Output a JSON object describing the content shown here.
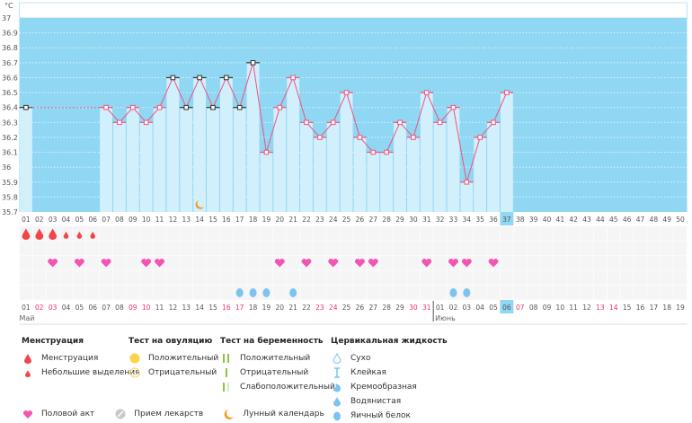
{
  "chart_data": {
    "type": "line",
    "title": "",
    "ylabel": "°C",
    "ylim": [
      35.7,
      37.0
    ],
    "yticks": [
      "37",
      "36.9",
      "36.8",
      "36.7",
      "36.6",
      "36.5",
      "36.4",
      "36.3",
      "36.2",
      "36.1",
      "36",
      "35.9",
      "35.8",
      "35.7"
    ],
    "cycle_days": [
      "01",
      "02",
      "03",
      "04",
      "05",
      "06",
      "07",
      "08",
      "09",
      "10",
      "11",
      "12",
      "13",
      "14",
      "15",
      "16",
      "17",
      "18",
      "19",
      "20",
      "21",
      "22",
      "23",
      "24",
      "25",
      "26",
      "27",
      "28",
      "29",
      "30",
      "31",
      "32",
      "33",
      "34",
      "35",
      "36",
      "37",
      "38",
      "39",
      "40",
      "41",
      "42",
      "43",
      "44",
      "45",
      "46",
      "47",
      "48",
      "49",
      "50"
    ],
    "temperatures": [
      36.4,
      null,
      null,
      null,
      null,
      null,
      36.4,
      36.3,
      36.4,
      36.3,
      36.4,
      36.6,
      36.4,
      36.6,
      36.4,
      36.6,
      36.4,
      36.7,
      36.1,
      36.4,
      36.6,
      36.3,
      36.2,
      36.3,
      36.5,
      36.2,
      36.1,
      36.1,
      36.3,
      36.2,
      36.5,
      36.3,
      36.4,
      35.9,
      36.2,
      36.3,
      36.5
    ],
    "excluded_points_days": [
      1,
      12,
      13,
      14,
      15,
      16,
      17,
      18
    ],
    "current_day": 37,
    "dates": [
      "01",
      "02",
      "03",
      "04",
      "05",
      "06",
      "07",
      "08",
      "09",
      "10",
      "11",
      "12",
      "13",
      "14",
      "15",
      "16",
      "17",
      "18",
      "19",
      "20",
      "21",
      "22",
      "23",
      "24",
      "25",
      "26",
      "27",
      "28",
      "29",
      "30",
      "31",
      "01",
      "02",
      "03",
      "04",
      "05",
      "06",
      "07",
      "08",
      "09",
      "10",
      "11",
      "12",
      "13",
      "14",
      "15",
      "16",
      "17",
      "18",
      "19"
    ],
    "weekend_date_indices": [
      2,
      3,
      9,
      10,
      16,
      17,
      23,
      24,
      30,
      31,
      38,
      44,
      45
    ],
    "months": [
      {
        "label": "Май",
        "start_day": 1
      },
      {
        "label": "Июнь",
        "start_day": 32
      }
    ],
    "menstruation_heavy_days": [
      1,
      2,
      3
    ],
    "menstruation_light_days": [
      4,
      5,
      6
    ],
    "intercourse_days": [
      3,
      5,
      7,
      10,
      11,
      20,
      22,
      24,
      26,
      27,
      31,
      33,
      34,
      36
    ],
    "egg_white_days": [
      17,
      18,
      19,
      21,
      33,
      34
    ],
    "moon_days": [
      14
    ]
  },
  "colors": {
    "bg": "#8fd7f3",
    "bar": "#d2effc",
    "line": "#f0537e",
    "weekend": "#f0306a",
    "menstruation": "#f2454a",
    "heart": "#f455b2",
    "egg": "#7dc3ef",
    "moon": "#f39a1e",
    "highlight": "#8fd7f3"
  },
  "legend": {
    "menstruation": {
      "title": "Менструация",
      "items": [
        "Менструация",
        "Небольшие выделения"
      ]
    },
    "ovulation": {
      "title": "Тест на овуляцию",
      "items": [
        "Положительный",
        "Отрицательный"
      ]
    },
    "pregnancy": {
      "title": "Тест на беременность",
      "items": [
        "Положительный",
        "Отрицательный",
        "Слабоположительный"
      ]
    },
    "cervical": {
      "title": "Цервикальная жидкость",
      "items": [
        "Сухо",
        "Клейкая",
        "Кремообразная",
        "Водянистая",
        "Яичный белок"
      ]
    },
    "other": [
      "Половой акт",
      "Прием лекарств",
      "Лунный календарь"
    ]
  }
}
